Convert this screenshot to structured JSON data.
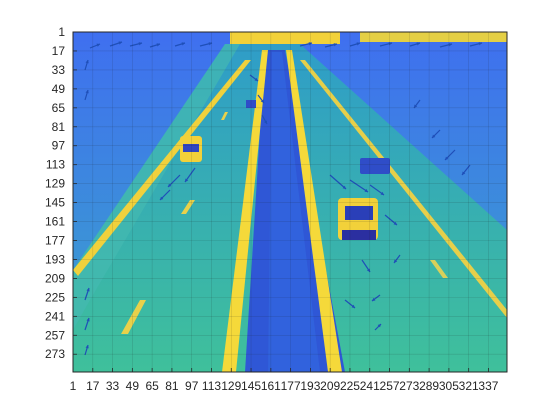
{
  "figure": {
    "x_tick_labels": [
      "1",
      "17",
      "33",
      "49",
      "65",
      "81",
      "97",
      "113",
      "129",
      "145",
      "161",
      "177",
      "193",
      "209",
      "225",
      "241",
      "257",
      "273",
      "289",
      "305",
      "321",
      "337"
    ],
    "y_tick_labels": [
      "1",
      "17",
      "33",
      "49",
      "65",
      "81",
      "97",
      "113",
      "129",
      "145",
      "161",
      "177",
      "193",
      "209",
      "225",
      "241",
      "257",
      "273"
    ],
    "colormap": "parula",
    "image_content": "highway-traffic-frame",
    "overlay": "optical-flow-vector-arrows",
    "colors": {
      "background_low": "#3a6fe8",
      "background_mid": "#33b8a8",
      "background_high": "#f2d13a",
      "lane_marking": "#f5d93a",
      "median_lane": "#2f57d6",
      "arrow_color": "#1f4fb8"
    }
  },
  "chart_data": {
    "type": "heatmap",
    "x": [
      1,
      17,
      33,
      49,
      65,
      81,
      97,
      113,
      129,
      145,
      161,
      177,
      193,
      209,
      225,
      241,
      257,
      273,
      289,
      305,
      321,
      337
    ],
    "y": [
      1,
      17,
      33,
      49,
      65,
      81,
      97,
      113,
      129,
      145,
      161,
      177,
      193,
      209,
      225,
      241,
      257,
      273
    ],
    "xlim": [
      1,
      352
    ],
    "ylim": [
      1,
      288
    ],
    "grid": true,
    "colormap": "parula",
    "title": "",
    "xlabel": "",
    "ylabel": ""
  }
}
